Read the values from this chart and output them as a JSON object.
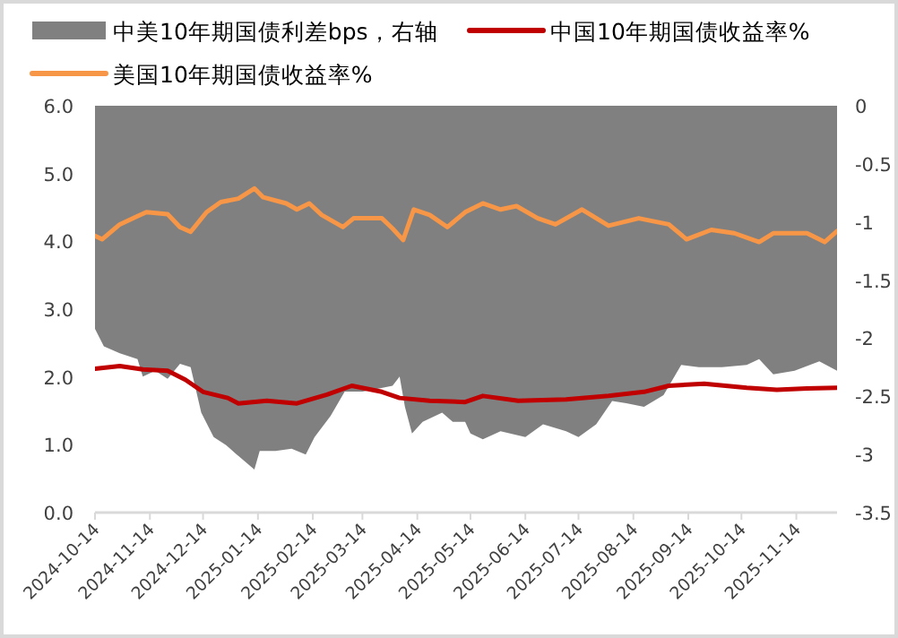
{
  "chart_data": {
    "type": "line",
    "legend": "top",
    "xlim": [
      "2024-10-14",
      "2025-12-07"
    ],
    "xticks": [
      "2024-10-14",
      "2024-11-14",
      "2024-12-14",
      "2025-01-14",
      "2025-02-14",
      "2025-03-14",
      "2025-04-14",
      "2025-05-14",
      "2025-06-14",
      "2025-07-14",
      "2025-08-14",
      "2025-09-14",
      "2025-10-14",
      "2025-11-14"
    ],
    "ylim": [
      0,
      6
    ],
    "yticks": [
      {
        "value": 0,
        "label": "0.0"
      },
      {
        "value": 1,
        "label": "1.0"
      },
      {
        "value": 2,
        "label": "2.0"
      },
      {
        "value": 3,
        "label": "3.0"
      },
      {
        "value": 4,
        "label": "4.0"
      },
      {
        "value": 5,
        "label": "5.0"
      },
      {
        "value": 6,
        "label": "6.0"
      }
    ],
    "y2lim": [
      -3.5,
      0
    ],
    "y2ticks": [
      0,
      -0.5,
      -1,
      -1.5,
      -2,
      -2.5,
      -3,
      -3.5
    ],
    "series": [
      {
        "name": "中美10年期国债利差bps，右轴",
        "type": "area",
        "axis": "y2",
        "color": "#808080",
        "x": [
          "2024-10-14",
          "2024-10-19",
          "2024-10-28",
          "2024-11-07",
          "2024-11-10",
          "2024-11-17",
          "2024-11-24",
          "2024-12-01",
          "2024-12-07",
          "2024-12-13",
          "2024-12-20",
          "2024-12-27",
          "2025-01-02",
          "2025-01-12",
          "2025-01-15",
          "2025-01-24",
          "2025-02-02",
          "2025-02-10",
          "2025-02-15",
          "2025-02-24",
          "2025-03-04",
          "2025-03-14",
          "2025-03-21",
          "2025-03-31",
          "2025-04-04",
          "2025-04-07",
          "2025-04-11",
          "2025-04-17",
          "2025-04-28",
          "2025-05-04",
          "2025-05-11",
          "2025-05-14",
          "2025-05-21",
          "2025-05-31",
          "2025-06-14",
          "2025-06-24",
          "2025-07-07",
          "2025-07-14",
          "2025-07-24",
          "2025-08-02",
          "2025-08-10",
          "2025-08-20",
          "2025-08-31",
          "2025-09-10",
          "2025-09-20",
          "2025-10-03",
          "2025-10-17",
          "2025-10-24",
          "2025-11-01",
          "2025-11-13",
          "2025-11-27",
          "2025-12-07"
        ],
        "values": [
          -1.92,
          -2.07,
          -2.13,
          -2.18,
          -2.33,
          -2.28,
          -2.35,
          -2.22,
          -2.25,
          -2.64,
          -2.85,
          -2.92,
          -3.0,
          -3.13,
          -2.97,
          -2.97,
          -2.95,
          -3.0,
          -2.85,
          -2.67,
          -2.46,
          -2.46,
          -2.44,
          -2.41,
          -2.33,
          -2.59,
          -2.82,
          -2.72,
          -2.64,
          -2.72,
          -2.72,
          -2.82,
          -2.87,
          -2.8,
          -2.85,
          -2.74,
          -2.8,
          -2.85,
          -2.74,
          -2.54,
          -2.56,
          -2.59,
          -2.49,
          -2.23,
          -2.25,
          -2.25,
          -2.23,
          -2.18,
          -2.31,
          -2.28,
          -2.2,
          -2.28
        ]
      },
      {
        "name": "中国10年期国债收益率%",
        "color": "#c00000",
        "x": [
          "2024-10-14",
          "2024-10-28",
          "2024-11-10",
          "2024-11-24",
          "2024-12-04",
          "2024-12-14",
          "2024-12-28",
          "2025-01-03",
          "2025-01-19",
          "2025-02-05",
          "2025-02-22",
          "2025-03-08",
          "2025-03-25",
          "2025-04-04",
          "2025-04-21",
          "2025-05-11",
          "2025-05-21",
          "2025-06-10",
          "2025-07-07",
          "2025-07-31",
          "2025-08-20",
          "2025-09-03",
          "2025-09-23",
          "2025-10-17",
          "2025-11-03",
          "2025-11-20",
          "2025-12-07"
        ],
        "values": [
          2.12,
          2.16,
          2.11,
          2.09,
          1.96,
          1.78,
          1.69,
          1.61,
          1.65,
          1.61,
          1.74,
          1.87,
          1.78,
          1.69,
          1.65,
          1.63,
          1.72,
          1.65,
          1.67,
          1.72,
          1.78,
          1.87,
          1.9,
          1.84,
          1.81,
          1.83,
          1.84
        ]
      },
      {
        "name": "美国10年期国债收益率%",
        "color": "#f79646",
        "x": [
          "2024-10-14",
          "2024-10-18",
          "2024-10-28",
          "2024-11-07",
          "2024-11-12",
          "2024-11-24",
          "2024-12-01",
          "2024-12-07",
          "2024-12-16",
          "2024-12-24",
          "2025-01-03",
          "2025-01-12",
          "2025-01-17",
          "2025-01-30",
          "2025-02-05",
          "2025-02-12",
          "2025-02-19",
          "2025-03-03",
          "2025-03-09",
          "2025-03-25",
          "2025-03-31",
          "2025-04-06",
          "2025-04-12",
          "2025-04-21",
          "2025-05-01",
          "2025-05-11",
          "2025-05-21",
          "2025-05-31",
          "2025-06-09",
          "2025-06-21",
          "2025-07-01",
          "2025-07-16",
          "2025-07-31",
          "2025-08-17",
          "2025-09-03",
          "2025-09-13",
          "2025-09-27",
          "2025-10-10",
          "2025-10-24",
          "2025-11-01",
          "2025-11-20",
          "2025-11-30",
          "2025-12-07"
        ],
        "values": [
          4.08,
          4.03,
          4.25,
          4.37,
          4.43,
          4.4,
          4.21,
          4.14,
          4.43,
          4.58,
          4.63,
          4.78,
          4.65,
          4.56,
          4.47,
          4.56,
          4.39,
          4.21,
          4.34,
          4.34,
          4.19,
          4.02,
          4.47,
          4.39,
          4.21,
          4.43,
          4.56,
          4.47,
          4.52,
          4.34,
          4.25,
          4.47,
          4.23,
          4.34,
          4.25,
          4.03,
          4.17,
          4.12,
          3.99,
          4.12,
          4.12,
          3.99,
          4.15
        ]
      }
    ]
  }
}
